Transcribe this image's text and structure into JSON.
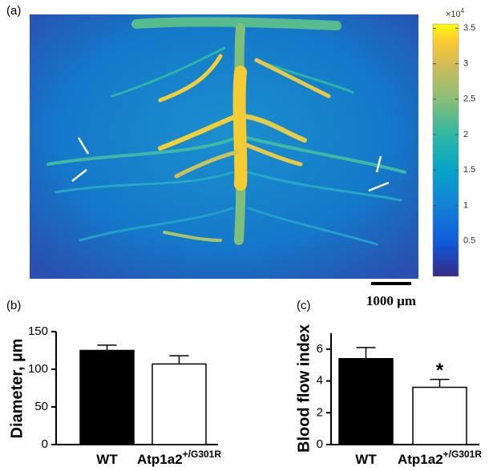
{
  "chart_data": [
    {
      "type": "image",
      "panel_label": "(a)",
      "colorbar_multiplier": {
        "base": "×10",
        "exponent": "4"
      },
      "clim": [
        0,
        3.56
      ],
      "colorbar_ticks": [
        0.5,
        1,
        1.5,
        2,
        2.5,
        3,
        3.5
      ],
      "scale_bar": "1000 µm"
    },
    {
      "type": "bar",
      "panel_label": "(b)",
      "ylabel": "Diameter, µm",
      "categories": [
        "WT",
        "Atp1a2"
      ],
      "category_superscripts": [
        null,
        "+/G301R"
      ],
      "values": [
        125,
        107
      ],
      "errors": [
        7,
        11
      ],
      "colors": [
        "#000000",
        "#ffffff"
      ],
      "ylim": [
        0,
        150
      ],
      "yticks": [
        0,
        50,
        100,
        150
      ]
    },
    {
      "type": "bar",
      "panel_label": "(c)",
      "ylabel": "Blood flow index",
      "categories": [
        "WT",
        "Atp1a2"
      ],
      "category_superscripts": [
        null,
        "+/G301R"
      ],
      "values": [
        5.4,
        3.6
      ],
      "errors": [
        0.7,
        0.5
      ],
      "colors": [
        "#000000",
        "#ffffff"
      ],
      "ylim": [
        0,
        7
      ],
      "yticks": [
        0,
        2,
        4,
        6
      ],
      "annotations": [
        "*"
      ]
    }
  ]
}
